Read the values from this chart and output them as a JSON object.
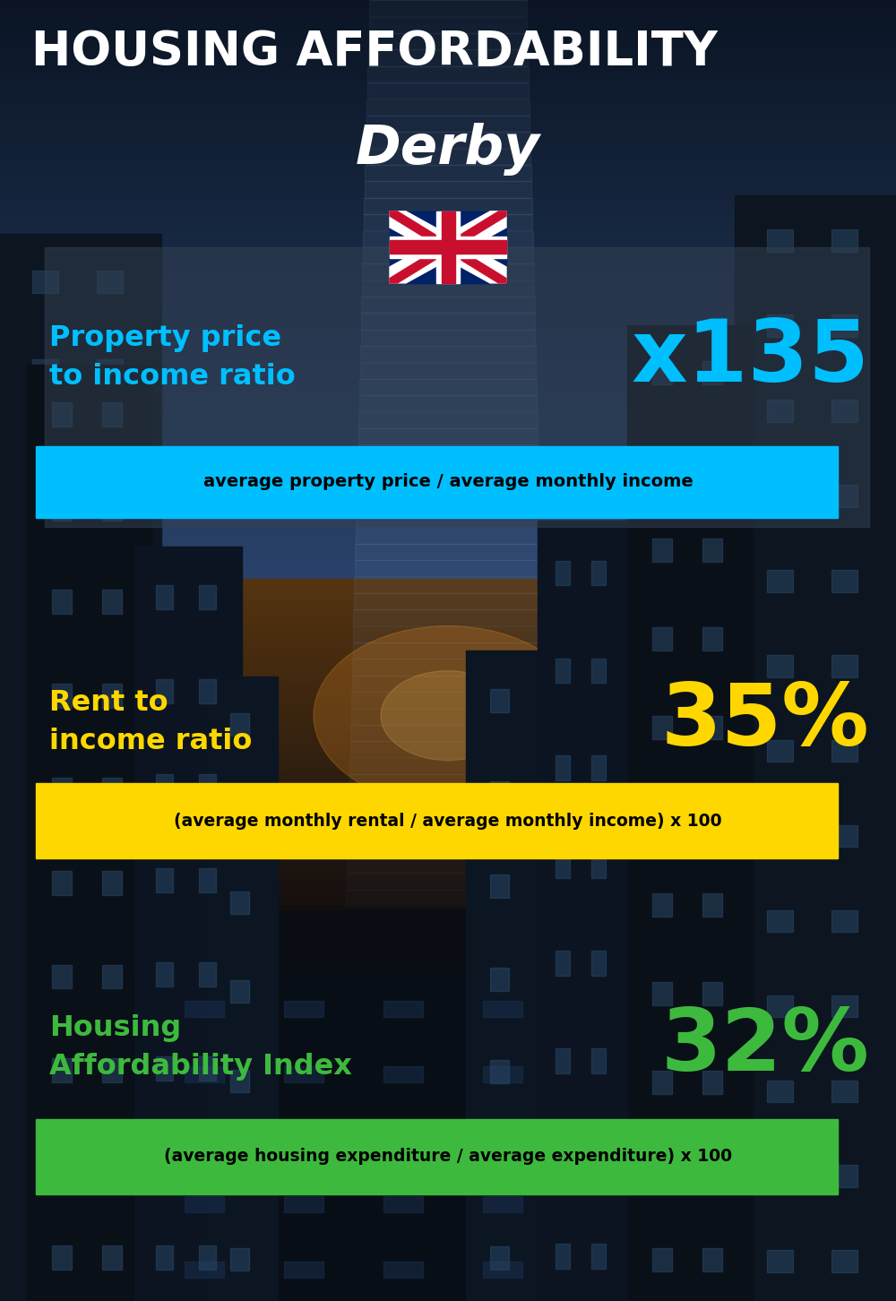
{
  "title_line1": "HOUSING AFFORDABILITY",
  "title_line2": "Derby",
  "section1_label": "Property price\nto income ratio",
  "section1_value": "x135",
  "section1_label_color": "#00BFFF",
  "section1_value_color": "#00BFFF",
  "section1_banner_text": "average property price / average monthly income",
  "section1_banner_bg": "#00BFFF",
  "section1_banner_text_color": "#000000",
  "section2_label": "Rent to\nincome ratio",
  "section2_value": "35%",
  "section2_label_color": "#FFD700",
  "section2_value_color": "#FFD700",
  "section2_banner_text": "(average monthly rental / average monthly income) x 100",
  "section2_banner_bg": "#FFD700",
  "section2_banner_text_color": "#000000",
  "section3_label": "Housing\nAffordability Index",
  "section3_value": "32%",
  "section3_label_color": "#3dba3d",
  "section3_value_color": "#3dba3d",
  "section3_banner_text": "(average housing expenditure / average expenditure) x 100",
  "section3_banner_bg": "#3dba3d",
  "section3_banner_text_color": "#000000",
  "bg_color": "#080f1a",
  "title_color": "#FFFFFF"
}
